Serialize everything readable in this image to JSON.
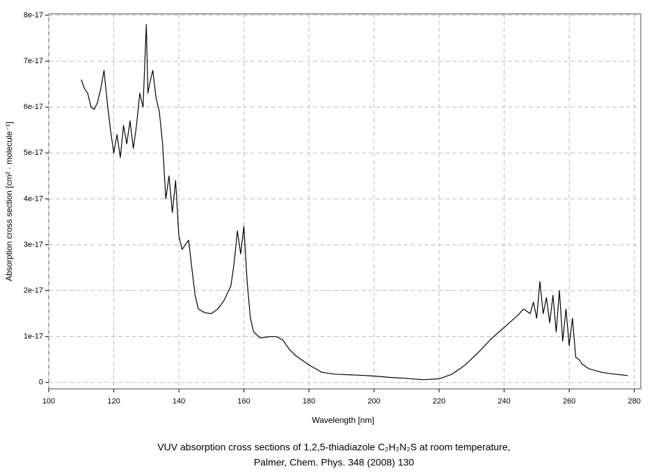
{
  "chart_data": {
    "type": "line",
    "title": "VUV absorption cross sections of 1,2,5-thiadiazole C₂H₂N₂S at room temperature,",
    "subtitle": "Palmer, Chem. Phys. 348 (2008) 130",
    "x_label": "Wavelength [nm]",
    "y_label": "Absorption cross section [cm² · molecule⁻¹]",
    "color": "#000000",
    "grid": true,
    "xlim": [
      100,
      282
    ],
    "xticks": [
      100,
      120,
      140,
      160,
      180,
      200,
      220,
      240,
      260,
      280
    ],
    "ylim": [
      -1.4e-18,
      8.03e-17
    ],
    "yticks": [
      0,
      1e-17,
      2e-17,
      3e-17,
      4e-17,
      5e-17,
      6e-17,
      7e-17,
      8e-17
    ],
    "x": [
      110,
      111,
      112,
      113,
      114,
      115,
      116,
      117,
      118,
      119,
      120,
      121,
      122,
      123,
      124,
      125,
      126,
      127,
      128,
      129,
      130,
      130.5,
      131,
      132,
      133,
      134,
      135,
      136,
      137,
      138,
      139,
      140,
      141,
      142,
      143,
      144,
      145,
      146,
      148,
      150,
      152,
      154,
      156,
      157,
      158,
      159,
      160,
      161,
      162,
      163,
      165,
      168,
      170,
      172,
      174,
      176,
      180,
      184,
      188,
      195,
      200,
      205,
      210,
      215,
      220,
      224,
      228,
      232,
      236,
      240,
      244,
      246,
      248,
      249,
      250,
      251,
      252,
      253,
      254,
      255,
      256,
      257,
      258,
      259,
      260,
      261,
      262,
      263,
      264,
      266,
      270,
      274,
      278
    ],
    "values": [
      6.6e-17,
      6.4e-17,
      6.3e-17,
      6e-17,
      5.95e-17,
      6.1e-17,
      6.4e-17,
      6.8e-17,
      6.1e-17,
      5.5e-17,
      5e-17,
      5.4e-17,
      4.9e-17,
      5.6e-17,
      5.2e-17,
      5.7e-17,
      5.1e-17,
      5.6e-17,
      6.3e-17,
      6e-17,
      7.8e-17,
      6.3e-17,
      6.5e-17,
      6.8e-17,
      6.2e-17,
      5.9e-17,
      5.2e-17,
      4e-17,
      4.5e-17,
      3.7e-17,
      4.4e-17,
      3.2e-17,
      2.9e-17,
      3e-17,
      3.1e-17,
      2.5e-17,
      1.9e-17,
      1.6e-17,
      1.52e-17,
      1.5e-17,
      1.6e-17,
      1.8e-17,
      2.1e-17,
      2.6e-17,
      3.3e-17,
      2.8e-17,
      3.4e-17,
      2.2e-17,
      1.4e-17,
      1.1e-17,
      9.7e-18,
      1e-17,
      1e-17,
      9.2e-18,
      7.2e-18,
      5.8e-18,
      3.8e-18,
      2.2e-18,
      1.8e-18,
      1.6e-18,
      1.4e-18,
      1.1e-18,
      9e-19,
      6e-19,
      8e-19,
      1.8e-18,
      3.8e-18,
      6.5e-18,
      9.5e-18,
      1.2e-17,
      1.45e-17,
      1.6e-17,
      1.5e-17,
      1.75e-17,
      1.4e-17,
      2.2e-17,
      1.5e-17,
      1.85e-17,
      1.3e-17,
      1.9e-17,
      1.1e-17,
      2e-17,
      9e-18,
      1.6e-17,
      8e-18,
      1.4e-17,
      5.5e-18,
      5e-18,
      4e-18,
      3e-18,
      2.2e-18,
      1.8e-18,
      1.5e-18
    ]
  }
}
